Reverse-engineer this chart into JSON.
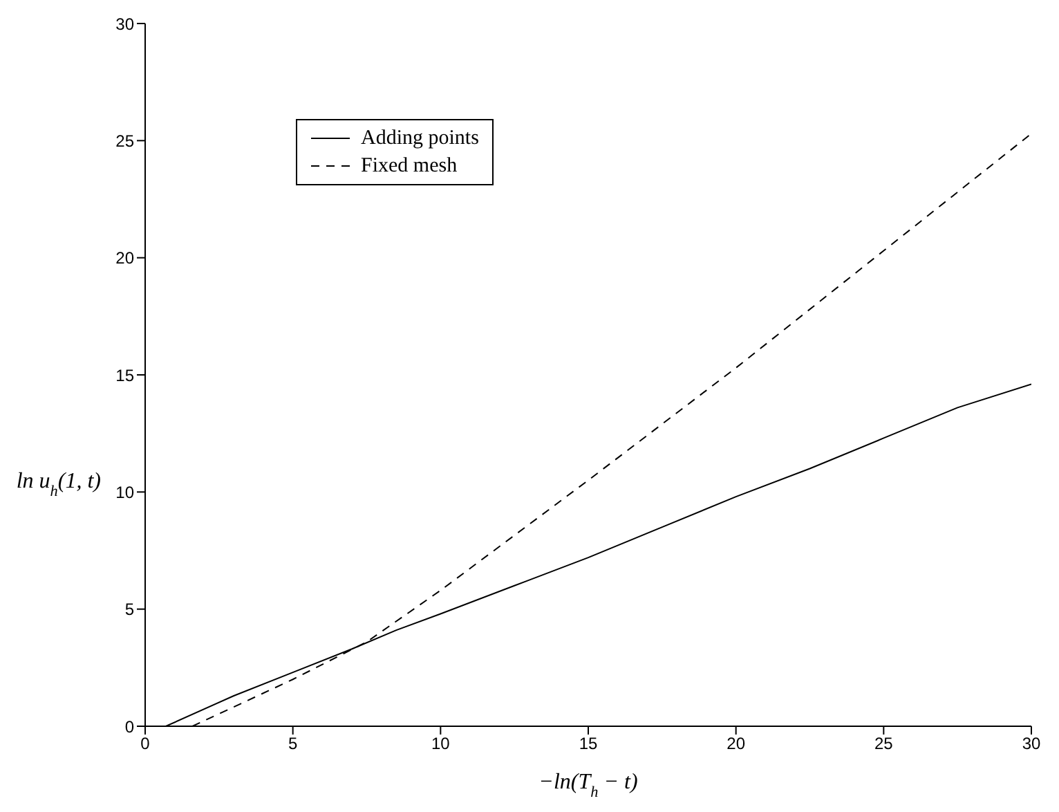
{
  "chart_data": {
    "type": "line",
    "xlabel": "−ln(T$_{h}$ − t)",
    "ylabel": "ln u$_{h}$(1, t)",
    "xlim": [
      0,
      30
    ],
    "ylim": [
      0,
      30
    ],
    "xticks": [
      0,
      5,
      10,
      15,
      20,
      25,
      30
    ],
    "yticks": [
      0,
      5,
      10,
      15,
      20,
      25,
      30
    ],
    "legend": "top left",
    "grid": false,
    "marker": "none",
    "series": [
      {
        "name": "Adding points",
        "color": "#000000",
        "line_style": "solid",
        "x": [
          0.7,
          3,
          5,
          7,
          8.5,
          10,
          12.5,
          15,
          17.5,
          20,
          22.5,
          25,
          27.5,
          30
        ],
        "values": [
          0,
          1.3,
          2.3,
          3.3,
          4.1,
          4.8,
          6,
          7.2,
          8.5,
          9.8,
          11,
          12.3,
          13.6,
          14.6
        ]
      },
      {
        "name": "Fixed mesh",
        "color": "#000000",
        "line_style": "dashed",
        "x": [
          1.6,
          5,
          7.5,
          10,
          15,
          20,
          25,
          30
        ],
        "values": [
          0,
          2,
          3.6,
          5.8,
          10.5,
          15.3,
          20.3,
          25.3
        ]
      }
    ]
  }
}
